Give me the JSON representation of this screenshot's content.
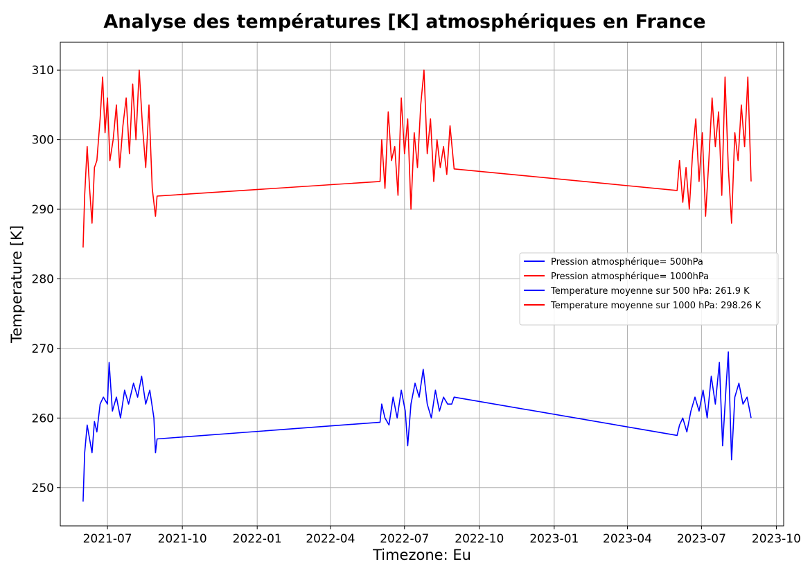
{
  "chart_data": {
    "type": "line",
    "title": "Analyse des températures [K] atmosphériques en France",
    "xlabel": "Timezone: Eu",
    "ylabel": "Temperature [K]",
    "x_ticks": [
      {
        "date": "2021-07-01",
        "label": "2021-07"
      },
      {
        "date": "2021-10-01",
        "label": "2021-10"
      },
      {
        "date": "2022-01-01",
        "label": "2022-01"
      },
      {
        "date": "2022-04-01",
        "label": "2022-04"
      },
      {
        "date": "2022-07-01",
        "label": "2022-07"
      },
      {
        "date": "2022-10-01",
        "label": "2022-10"
      },
      {
        "date": "2023-01-01",
        "label": "2023-01"
      },
      {
        "date": "2023-04-01",
        "label": "2023-04"
      },
      {
        "date": "2023-07-01",
        "label": "2023-07"
      },
      {
        "date": "2023-10-01",
        "label": "2023-10"
      }
    ],
    "y_ticks": [
      250,
      260,
      270,
      280,
      290,
      300,
      310
    ],
    "xlim": [
      "2021-05-04",
      "2023-10-10"
    ],
    "ylim": [
      244.5,
      314
    ],
    "grid": true,
    "legend_position": "center-right",
    "legend": [
      {
        "label": "Pression atmosphérique= 500hPa",
        "color": "#0000ff"
      },
      {
        "label": "Pression atmosphérique= 1000hPa",
        "color": "#ff0000"
      },
      {
        "label": "Temperature moyenne sur 500 hPa: 261.9 K",
        "color": "#0000ff"
      },
      {
        "label": "Temperature moyenne sur 1000 hPa: 298.26 K",
        "color": "#ff0000"
      }
    ],
    "series": [
      {
        "color": "#0000ff",
        "points": [
          [
            "2021-06-01",
            248
          ],
          [
            "2021-06-03",
            255
          ],
          [
            "2021-06-06",
            259
          ],
          [
            "2021-06-09",
            257
          ],
          [
            "2021-06-12",
            255
          ],
          [
            "2021-06-15",
            259.5
          ],
          [
            "2021-06-18",
            258
          ],
          [
            "2021-06-22",
            262
          ],
          [
            "2021-06-26",
            263
          ],
          [
            "2021-07-01",
            262
          ],
          [
            "2021-07-03",
            268
          ],
          [
            "2021-07-07",
            261
          ],
          [
            "2021-07-12",
            263
          ],
          [
            "2021-07-17",
            260
          ],
          [
            "2021-07-22",
            264
          ],
          [
            "2021-07-27",
            262
          ],
          [
            "2021-08-02",
            265
          ],
          [
            "2021-08-07",
            263
          ],
          [
            "2021-08-12",
            266
          ],
          [
            "2021-08-17",
            262
          ],
          [
            "2021-08-22",
            264
          ],
          [
            "2021-08-27",
            260
          ],
          [
            "2021-08-29",
            255
          ],
          [
            "2021-08-31",
            257
          ],
          [
            "2022-06-01",
            259.4
          ],
          [
            "2022-06-03",
            262
          ],
          [
            "2022-06-07",
            260
          ],
          [
            "2022-06-12",
            259
          ],
          [
            "2022-06-17",
            263
          ],
          [
            "2022-06-22",
            260
          ],
          [
            "2022-06-27",
            264
          ],
          [
            "2022-07-02",
            261
          ],
          [
            "2022-07-05",
            256
          ],
          [
            "2022-07-09",
            262
          ],
          [
            "2022-07-14",
            265
          ],
          [
            "2022-07-19",
            263
          ],
          [
            "2022-07-24",
            267
          ],
          [
            "2022-07-29",
            262
          ],
          [
            "2022-08-03",
            260
          ],
          [
            "2022-08-08",
            264
          ],
          [
            "2022-08-13",
            261
          ],
          [
            "2022-08-18",
            263
          ],
          [
            "2022-08-23",
            262
          ],
          [
            "2022-08-28",
            262
          ],
          [
            "2022-08-31",
            263
          ],
          [
            "2023-06-01",
            257.5
          ],
          [
            "2023-06-04",
            259
          ],
          [
            "2023-06-08",
            260
          ],
          [
            "2023-06-13",
            258
          ],
          [
            "2023-06-18",
            261
          ],
          [
            "2023-06-23",
            263
          ],
          [
            "2023-06-28",
            261
          ],
          [
            "2023-07-03",
            264
          ],
          [
            "2023-07-08",
            260
          ],
          [
            "2023-07-13",
            266
          ],
          [
            "2023-07-18",
            262
          ],
          [
            "2023-07-23",
            268
          ],
          [
            "2023-07-27",
            256
          ],
          [
            "2023-07-31",
            264
          ],
          [
            "2023-08-03",
            269.5
          ],
          [
            "2023-08-07",
            254
          ],
          [
            "2023-08-11",
            263
          ],
          [
            "2023-08-16",
            265
          ],
          [
            "2023-08-21",
            262
          ],
          [
            "2023-08-26",
            263
          ],
          [
            "2023-08-31",
            260
          ]
        ]
      },
      {
        "color": "#ff0000",
        "points": [
          [
            "2021-06-01",
            284.5
          ],
          [
            "2021-06-03",
            292
          ],
          [
            "2021-06-06",
            299
          ],
          [
            "2021-06-09",
            293
          ],
          [
            "2021-06-12",
            288
          ],
          [
            "2021-06-15",
            296
          ],
          [
            "2021-06-18",
            297
          ],
          [
            "2021-06-22",
            303
          ],
          [
            "2021-06-25",
            309
          ],
          [
            "2021-06-28",
            301
          ],
          [
            "2021-07-01",
            306
          ],
          [
            "2021-07-04",
            297
          ],
          [
            "2021-07-08",
            300
          ],
          [
            "2021-07-12",
            305
          ],
          [
            "2021-07-16",
            296
          ],
          [
            "2021-07-20",
            302
          ],
          [
            "2021-07-24",
            306
          ],
          [
            "2021-07-28",
            298
          ],
          [
            "2021-08-01",
            308
          ],
          [
            "2021-08-05",
            300
          ],
          [
            "2021-08-09",
            310
          ],
          [
            "2021-08-13",
            302
          ],
          [
            "2021-08-17",
            296
          ],
          [
            "2021-08-21",
            305
          ],
          [
            "2021-08-25",
            293
          ],
          [
            "2021-08-29",
            289
          ],
          [
            "2021-08-31",
            291.9
          ],
          [
            "2022-06-01",
            294
          ],
          [
            "2022-06-03",
            300
          ],
          [
            "2022-06-07",
            293
          ],
          [
            "2022-06-11",
            304
          ],
          [
            "2022-06-15",
            297
          ],
          [
            "2022-06-19",
            299
          ],
          [
            "2022-06-23",
            292
          ],
          [
            "2022-06-27",
            306
          ],
          [
            "2022-07-01",
            298
          ],
          [
            "2022-07-05",
            303
          ],
          [
            "2022-07-09",
            290
          ],
          [
            "2022-07-13",
            301
          ],
          [
            "2022-07-17",
            296
          ],
          [
            "2022-07-21",
            305
          ],
          [
            "2022-07-25",
            310
          ],
          [
            "2022-07-29",
            298
          ],
          [
            "2022-08-02",
            303
          ],
          [
            "2022-08-06",
            294
          ],
          [
            "2022-08-10",
            300
          ],
          [
            "2022-08-14",
            296
          ],
          [
            "2022-08-18",
            299
          ],
          [
            "2022-08-22",
            295
          ],
          [
            "2022-08-26",
            302
          ],
          [
            "2022-08-31",
            295.8
          ],
          [
            "2023-06-01",
            292.7
          ],
          [
            "2023-06-04",
            297
          ],
          [
            "2023-06-08",
            291
          ],
          [
            "2023-06-12",
            296
          ],
          [
            "2023-06-16",
            290
          ],
          [
            "2023-06-20",
            298
          ],
          [
            "2023-06-24",
            303
          ],
          [
            "2023-06-28",
            294
          ],
          [
            "2023-07-02",
            301
          ],
          [
            "2023-07-06",
            289
          ],
          [
            "2023-07-10",
            297
          ],
          [
            "2023-07-14",
            306
          ],
          [
            "2023-07-18",
            299
          ],
          [
            "2023-07-22",
            304
          ],
          [
            "2023-07-26",
            292
          ],
          [
            "2023-07-30",
            309
          ],
          [
            "2023-08-03",
            296
          ],
          [
            "2023-08-07",
            288
          ],
          [
            "2023-08-11",
            301
          ],
          [
            "2023-08-15",
            297
          ],
          [
            "2023-08-19",
            305
          ],
          [
            "2023-08-23",
            299
          ],
          [
            "2023-08-27",
            309
          ],
          [
            "2023-08-31",
            294
          ]
        ]
      }
    ]
  }
}
